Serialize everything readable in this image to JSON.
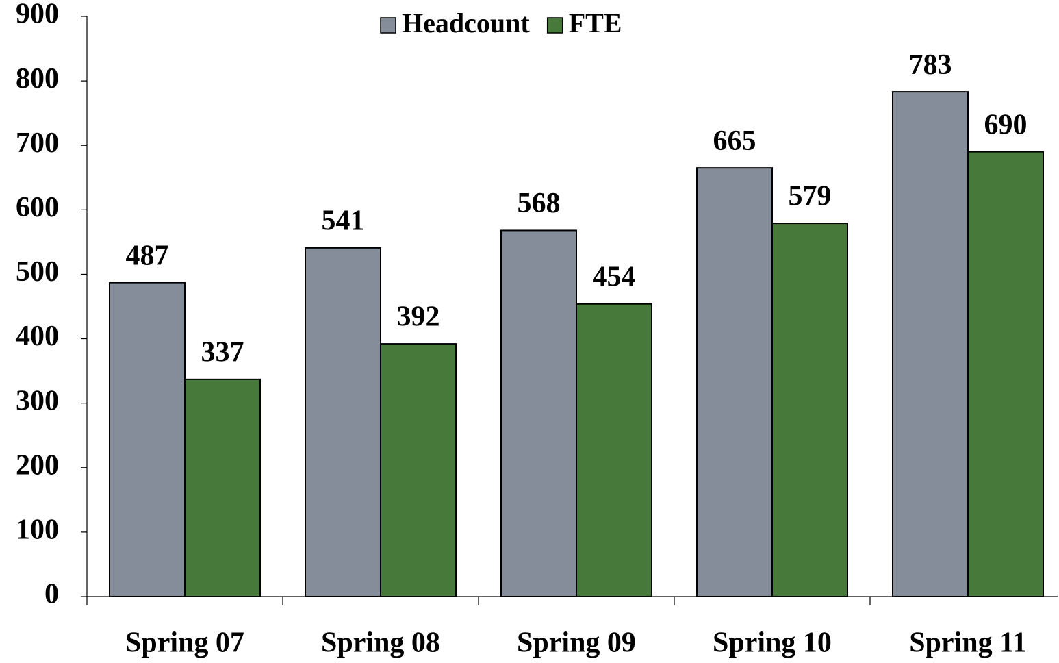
{
  "chart_data": {
    "type": "bar",
    "categories": [
      "Spring 07",
      "Spring 08",
      "Spring 09",
      "Spring 10",
      "Spring 11"
    ],
    "series": [
      {
        "name": "Headcount",
        "color": "#858d9b",
        "values": [
          487,
          541,
          568,
          665,
          783
        ]
      },
      {
        "name": "FTE",
        "color": "#47793a",
        "values": [
          337,
          392,
          454,
          579,
          690
        ]
      }
    ],
    "ylim": [
      0,
      900
    ],
    "yticks": [
      0,
      100,
      200,
      300,
      400,
      500,
      600,
      700,
      800,
      900
    ],
    "legend": "top"
  }
}
